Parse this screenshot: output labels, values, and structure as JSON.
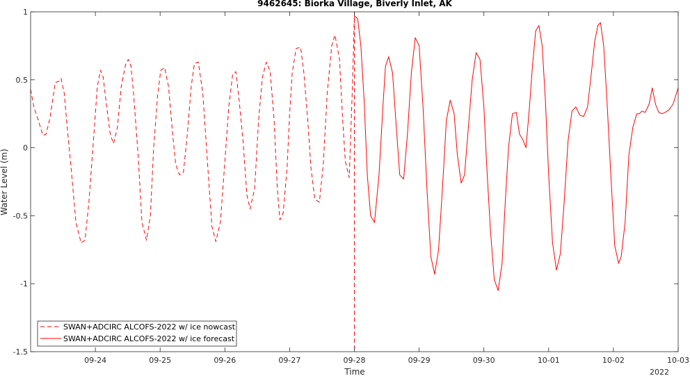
{
  "chart_data": {
    "type": "line",
    "title": "9462645: Biorka Village, Biverly Inlet, AK",
    "xlabel": "Time",
    "ylabel": "Water Level (m)",
    "ylim": [
      -1.5,
      1
    ],
    "yticks": [
      -1.5,
      -1,
      -0.5,
      0,
      0.5,
      1
    ],
    "ytick_labels": [
      "-1.5",
      "-1",
      "-0.5",
      "0",
      "0.5",
      "1"
    ],
    "xlim": [
      0,
      10
    ],
    "xticks": [
      1,
      2,
      3,
      4,
      5,
      6,
      7,
      8,
      9,
      10
    ],
    "xtick_labels": [
      "09-24",
      "09-25",
      "09-26",
      "09-27",
      "09-28",
      "09-29",
      "09-30",
      "10-01",
      "10-02",
      "10-03"
    ],
    "year_label": "2022",
    "grid": false,
    "legend_position": "bottom-left",
    "vline_x": 5,
    "series_color": "#ff0000",
    "series": [
      {
        "name": "SWAN+ADCIRC ALCOFS-2022 w/ ice nowcast",
        "style": "dashed",
        "x": [
          0.0,
          0.05,
          0.12,
          0.19,
          0.24,
          0.3,
          0.38,
          0.44,
          0.47,
          0.52,
          0.56,
          0.62,
          0.7,
          0.78,
          0.84,
          0.9,
          0.97,
          1.03,
          1.08,
          1.12,
          1.18,
          1.23,
          1.28,
          1.34,
          1.4,
          1.47,
          1.51,
          1.55,
          1.59,
          1.66,
          1.72,
          1.79,
          1.85,
          1.9,
          1.96,
          2.01,
          2.07,
          2.13,
          2.19,
          2.24,
          2.3,
          2.36,
          2.42,
          2.48,
          2.53,
          2.59,
          2.66,
          2.73,
          2.8,
          2.86,
          2.93,
          3.0,
          3.06,
          3.12,
          3.17,
          3.22,
          3.28,
          3.34,
          3.39,
          3.46,
          3.52,
          3.58,
          3.64,
          3.7,
          3.76,
          3.81,
          3.85,
          3.9,
          3.96,
          4.0,
          4.04,
          4.1,
          4.17,
          4.22,
          4.28,
          4.33,
          4.39,
          4.46,
          4.52,
          4.58,
          4.65,
          4.7,
          4.77,
          4.82,
          4.86,
          4.92,
          4.97,
          5.0
        ],
        "y": [
          0.43,
          0.3,
          0.2,
          0.09,
          0.1,
          0.22,
          0.48,
          0.49,
          0.51,
          0.4,
          0.18,
          -0.12,
          -0.55,
          -0.7,
          -0.68,
          -0.4,
          0.05,
          0.45,
          0.57,
          0.52,
          0.28,
          0.1,
          0.03,
          0.15,
          0.45,
          0.62,
          0.65,
          0.6,
          0.4,
          -0.05,
          -0.55,
          -0.68,
          -0.5,
          0.0,
          0.38,
          0.57,
          0.59,
          0.45,
          0.12,
          -0.12,
          -0.2,
          -0.18,
          0.1,
          0.45,
          0.62,
          0.63,
          0.4,
          -0.1,
          -0.58,
          -0.69,
          -0.55,
          -0.1,
          0.3,
          0.54,
          0.56,
          0.35,
          0.05,
          -0.35,
          -0.45,
          -0.3,
          0.2,
          0.52,
          0.63,
          0.56,
          0.2,
          -0.3,
          -0.53,
          -0.48,
          -0.15,
          0.25,
          0.55,
          0.73,
          0.74,
          0.55,
          0.2,
          -0.15,
          -0.38,
          -0.4,
          -0.12,
          0.4,
          0.75,
          0.83,
          0.65,
          0.2,
          -0.1,
          -0.22,
          0.45,
          0.97
        ]
      },
      {
        "name": "SWAN+ADCIRC ALCOFS-2022 w/ ice forecast",
        "style": "solid",
        "x": [
          5.0,
          5.05,
          5.1,
          5.15,
          5.2,
          5.25,
          5.31,
          5.38,
          5.44,
          5.48,
          5.53,
          5.59,
          5.64,
          5.7,
          5.76,
          5.82,
          5.88,
          5.94,
          6.0,
          6.06,
          6.12,
          6.18,
          6.24,
          6.3,
          6.36,
          6.42,
          6.48,
          6.54,
          6.59,
          6.65,
          6.7,
          6.76,
          6.82,
          6.88,
          6.94,
          7.0,
          7.04,
          7.1,
          7.16,
          7.22,
          7.28,
          7.33,
          7.38,
          7.44,
          7.5,
          7.55,
          7.6,
          7.65,
          7.7,
          7.75,
          7.8,
          7.85,
          7.9,
          7.95,
          8.0,
          8.06,
          8.12,
          8.18,
          8.24,
          8.3,
          8.36,
          8.42,
          8.48,
          8.54,
          8.6,
          8.66,
          8.71,
          8.76,
          8.8,
          8.85,
          8.9,
          8.96,
          9.02,
          9.08,
          9.12,
          9.18,
          9.24,
          9.3,
          9.36,
          9.4,
          9.44,
          9.49,
          9.55,
          9.6,
          9.65,
          9.7,
          9.75,
          9.8,
          9.86,
          9.92,
          10.0
        ],
        "y": [
          0.97,
          0.95,
          0.75,
          0.35,
          -0.2,
          -0.5,
          -0.55,
          -0.2,
          0.3,
          0.6,
          0.67,
          0.55,
          0.2,
          -0.2,
          -0.23,
          0.1,
          0.55,
          0.81,
          0.75,
          0.3,
          -0.3,
          -0.8,
          -0.93,
          -0.75,
          -0.3,
          0.2,
          0.35,
          0.25,
          -0.05,
          -0.26,
          -0.2,
          0.15,
          0.5,
          0.7,
          0.65,
          0.3,
          -0.1,
          -0.6,
          -0.97,
          -1.05,
          -0.85,
          -0.4,
          0.0,
          0.25,
          0.26,
          0.1,
          0.06,
          0.0,
          0.28,
          0.6,
          0.86,
          0.9,
          0.75,
          0.35,
          -0.2,
          -0.7,
          -0.9,
          -0.78,
          -0.4,
          0.05,
          0.27,
          0.3,
          0.24,
          0.23,
          0.3,
          0.55,
          0.78,
          0.9,
          0.92,
          0.75,
          0.35,
          -0.2,
          -0.72,
          -0.85,
          -0.8,
          -0.55,
          -0.05,
          0.15,
          0.25,
          0.25,
          0.27,
          0.26,
          0.32,
          0.44,
          0.32,
          0.26,
          0.25,
          0.26,
          0.28,
          0.32,
          0.44
        ]
      }
    ]
  }
}
